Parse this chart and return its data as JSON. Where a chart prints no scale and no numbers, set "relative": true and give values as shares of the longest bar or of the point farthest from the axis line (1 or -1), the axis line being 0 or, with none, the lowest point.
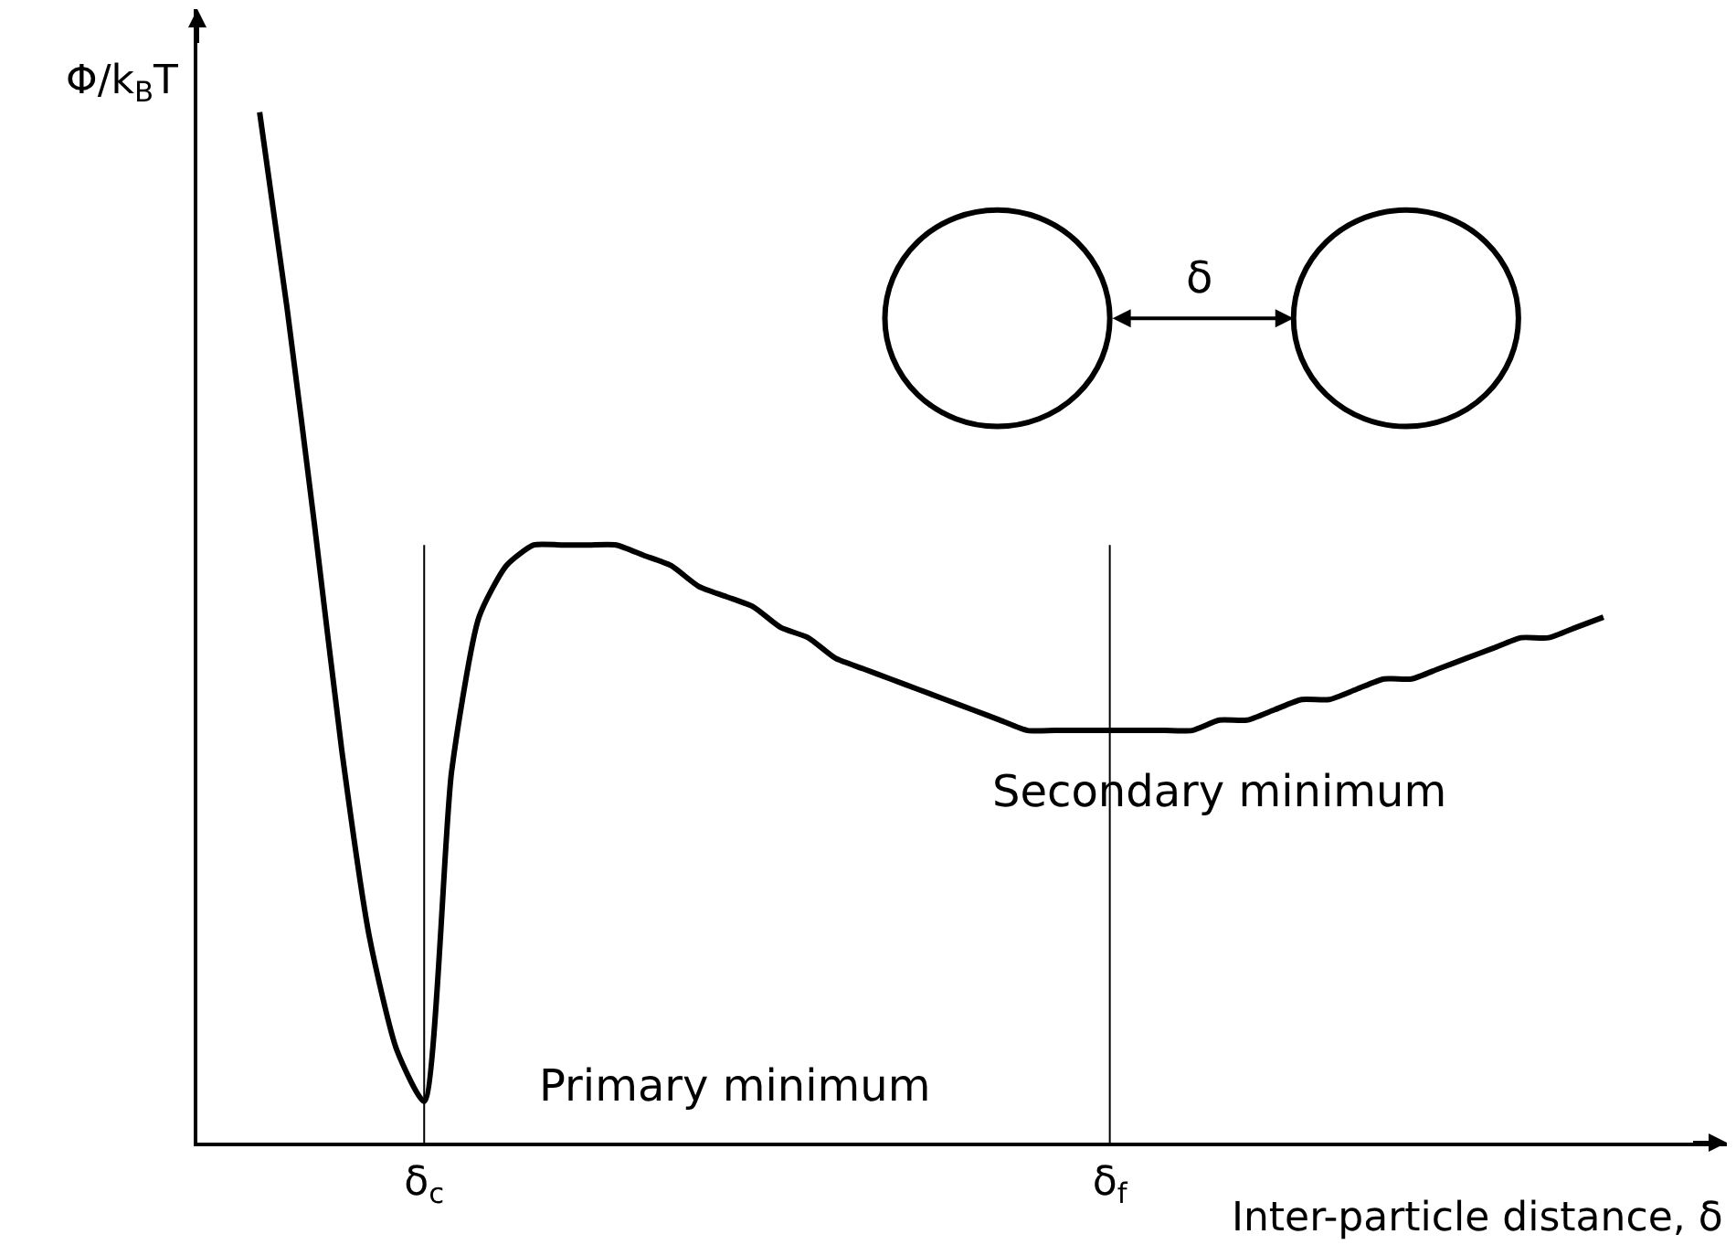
{
  "chart_data": {
    "type": "line",
    "relative": true,
    "ylabel": "Φ/k$_{B}$T",
    "xlabel": "Inter-particle distance, δ",
    "categories": [
      null,
      null,
      null,
      null,
      null,
      null,
      "δ$_{c}$",
      null,
      null,
      null,
      null,
      null,
      null,
      null,
      null,
      null,
      null,
      null,
      null,
      null,
      null,
      null,
      null,
      null,
      null,
      null,
      null,
      null,
      null,
      null,
      null,
      "δ$_{f}$",
      null,
      null,
      null,
      null,
      null,
      null,
      null,
      null,
      null,
      null,
      null,
      null,
      null,
      null,
      null,
      null,
      null,
      null
    ],
    "series": [
      {
        "color": "#000000",
        "values": [
          1.0,
          0.81,
          0.6,
          0.38,
          0.2,
          0.09,
          0.04,
          0.36,
          0.51,
          0.56,
          0.58,
          0.58,
          0.58,
          0.58,
          0.57,
          0.56,
          0.54,
          0.53,
          0.52,
          0.5,
          0.49,
          0.47,
          0.46,
          0.45,
          0.44,
          0.43,
          0.42,
          0.41,
          0.4,
          0.4,
          0.4,
          0.4,
          0.4,
          0.4,
          0.4,
          0.41,
          0.41,
          0.42,
          0.43,
          0.43,
          0.44,
          0.45,
          0.45,
          0.46,
          0.47,
          0.48,
          0.49,
          0.49,
          0.5,
          0.51
        ]
      }
    ],
    "ref_lines": [
      {
        "axis": "x",
        "value": "δ$_{c}$"
      },
      {
        "axis": "x",
        "value": "δ$_{f}$"
      }
    ],
    "annotations": [
      "Primary minimum",
      "Secondary minimum",
      "δ"
    ],
    "marker": "none",
    "line_style": "solid"
  }
}
